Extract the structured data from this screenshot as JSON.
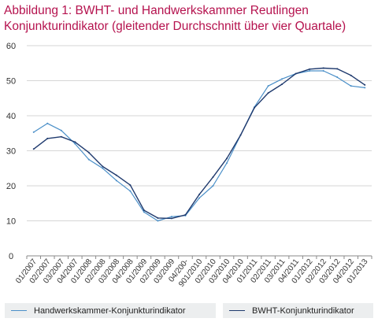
{
  "header": {
    "title_line1": "Abbildung 1: BWHT- und Handwerkskammer  Reutlingen",
    "title_line2": "Konjunkturindikator (gleitender Durchschnitt über vier Quartale)"
  },
  "colors": {
    "title": "#b5124e",
    "handwerkskammer": "#4a8fc8",
    "bwht": "#1f3a6e",
    "grid": "#d6d6d6",
    "legend_bg": "#eceeef"
  },
  "chart_data": {
    "type": "line",
    "title": "",
    "xlabel": "",
    "ylabel": "",
    "ylim": [
      0,
      60
    ],
    "yticks": [
      "0",
      "10",
      "20",
      "30",
      "40",
      "50",
      "60"
    ],
    "grid": true,
    "legend_position": "bottom",
    "categories": [
      "01/2007",
      "02/2007",
      "03/2007",
      "04/2007",
      "01/2008",
      "02/2008",
      "03/2008",
      "04/2008",
      "01/2009",
      "02/2009",
      "03/2009",
      "04/200-",
      "901/2010",
      "02/2010",
      "03/2010",
      "04/2010",
      "01/2011",
      "02/2011",
      "03/2011",
      "04/2011",
      "01/2012",
      "02/2012",
      "03/2012",
      "04/2012",
      "01/2013"
    ],
    "series": [
      {
        "name": "Handwerkskammer-Konjunkturindikator",
        "color": "#4a8fc8",
        "values": [
          35.3,
          37.8,
          35.8,
          32.0,
          27.5,
          25.0,
          21.5,
          18.5,
          12.5,
          10.0,
          11.2,
          11.5,
          16.5,
          20.0,
          26.5,
          34.5,
          42.5,
          48.5,
          50.5,
          52.0,
          52.8,
          52.8,
          51.0,
          48.5,
          48.0
        ]
      },
      {
        "name": "BWHT-Konjunkturindikator",
        "color": "#1f3a6e",
        "values": [
          30.5,
          33.5,
          34.0,
          32.5,
          29.5,
          25.5,
          23.0,
          20.2,
          13.0,
          10.8,
          10.7,
          11.7,
          17.5,
          22.5,
          27.8,
          34.5,
          42.3,
          46.5,
          49.0,
          52.0,
          53.3,
          53.6,
          53.4,
          51.5,
          48.8
        ]
      }
    ]
  }
}
